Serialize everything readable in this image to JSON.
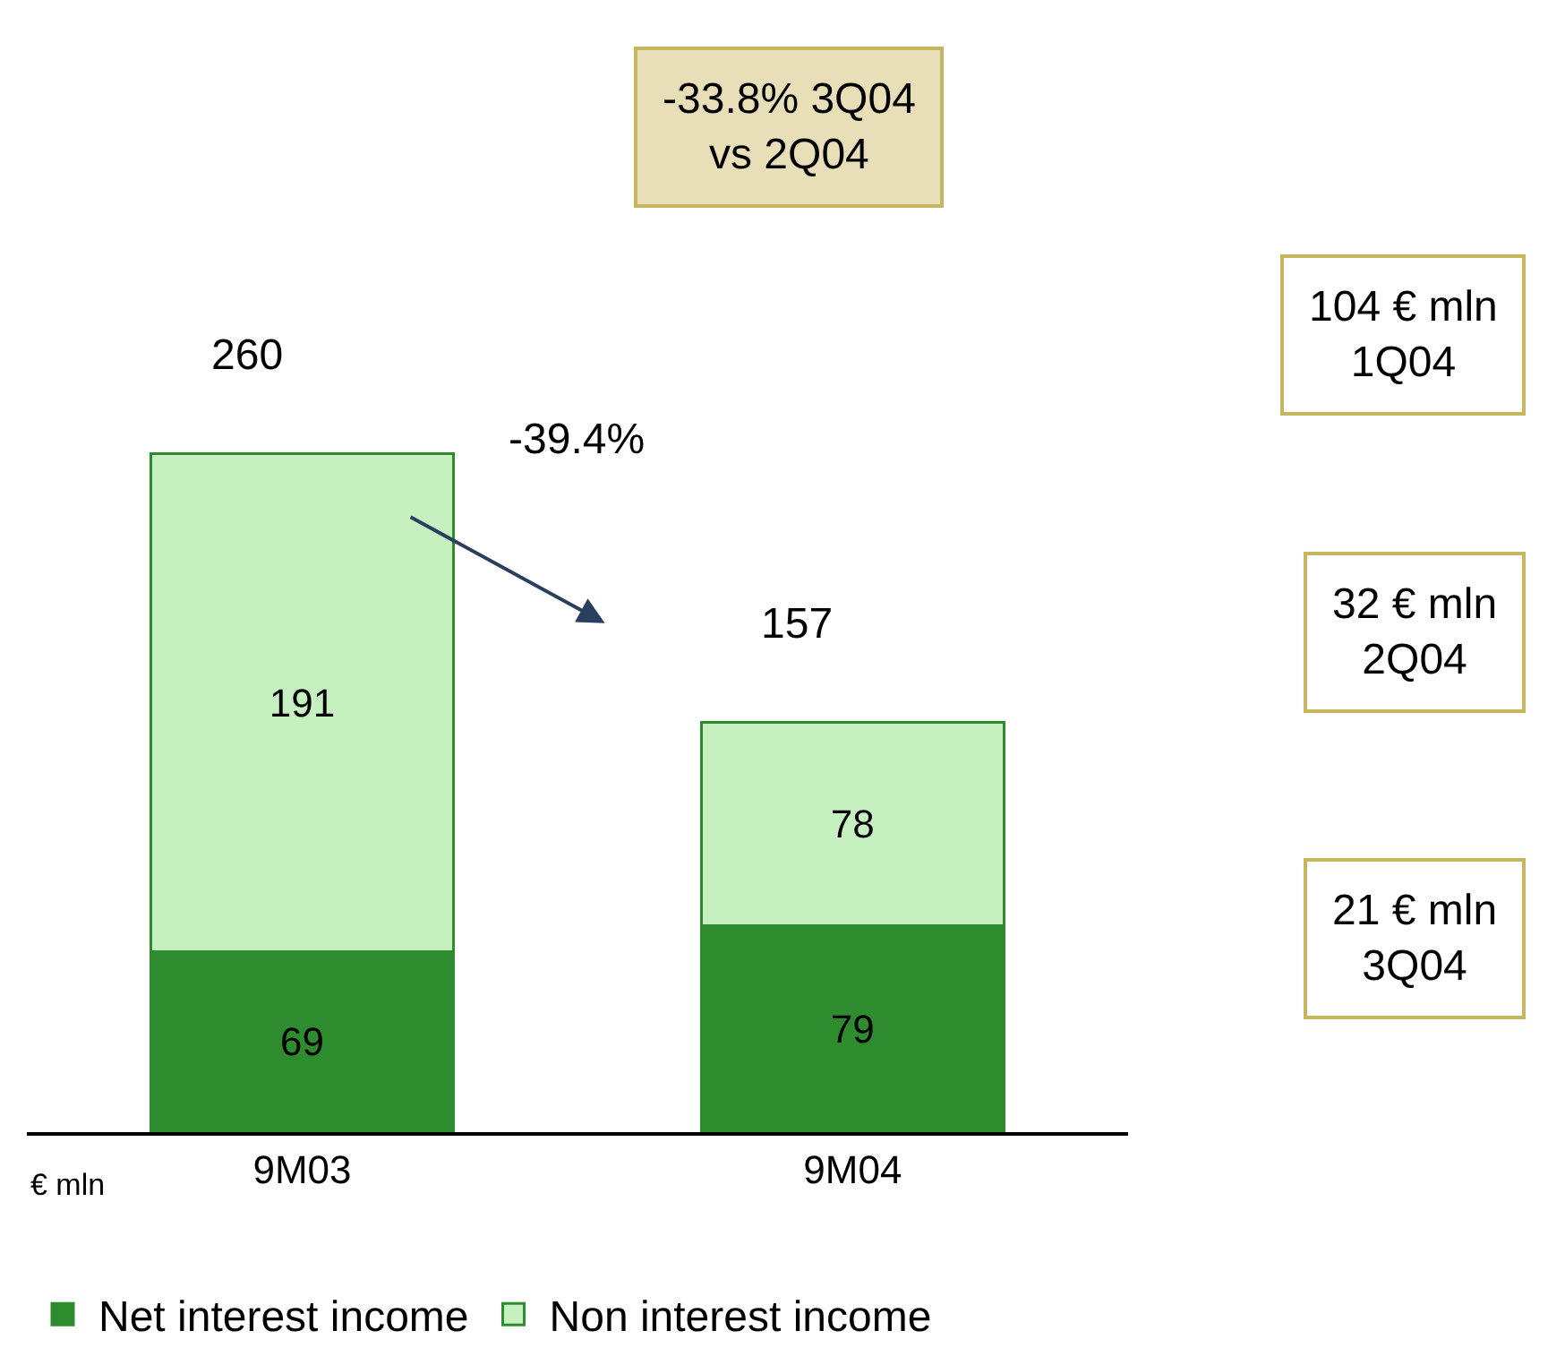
{
  "chart_data": {
    "type": "bar",
    "stacked": true,
    "categories": [
      "9M03",
      "9M04"
    ],
    "series": [
      {
        "name": "Net interest income",
        "color": "#2e8b2e",
        "values": [
          69,
          79
        ]
      },
      {
        "name": "Non interest income",
        "color": "#c6f0c0",
        "values": [
          191,
          78
        ]
      }
    ],
    "data_labels": true,
    "totals": [
      "260",
      "157"
    ],
    "legend": "bottom left",
    "annotations": [
      "-39.4%",
      "-33.8% 3Q04\nvs 2Q04",
      "104 € mln\n1Q04",
      "32 € mln\n2Q04",
      "21 € mln\n3Q04",
      "€ mln"
    ]
  }
}
